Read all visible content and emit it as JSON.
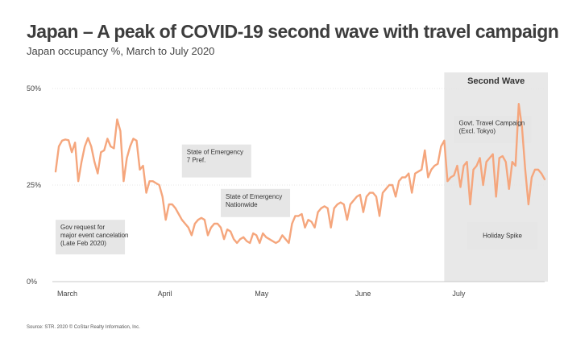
{
  "chart_data": {
    "type": "line",
    "title": "Japan – A peak of COVID-19 second wave with travel campaign",
    "subtitle": "Japan occupancy %, March to July 2020",
    "source": "Source: STR. 2020 © CoStar Realty Information, Inc.",
    "series_name": "Japan occupancy %",
    "line_color": "#f5a67d",
    "shade_color": "#e8e8e8",
    "annotation_color": "#e6e6e6",
    "ylim": [
      0,
      50
    ],
    "yticks": [
      {
        "value": 0,
        "label": "0%"
      },
      {
        "value": 25,
        "label": "25%"
      },
      {
        "value": 50,
        "label": "50%"
      }
    ],
    "xlim": [
      0,
      152
    ],
    "xticks": [
      {
        "day": 1,
        "label": "March"
      },
      {
        "day": 32,
        "label": "April"
      },
      {
        "day": 62,
        "label": "May"
      },
      {
        "day": 93,
        "label": "June"
      },
      {
        "day": 123,
        "label": "July"
      }
    ],
    "shaded_region": {
      "label": "Second Wave",
      "start_day": 121,
      "end_day": 152
    },
    "annotations": [
      {
        "label": "Gov request for\nmajor event cancelation\n(Late Feb 2020)",
        "day": 1,
        "y": 16
      },
      {
        "label": "State of Emergency\n7 Pref.",
        "day": 40,
        "y": 35.5
      },
      {
        "label": "State of Emergency\nNationwide",
        "day": 52,
        "y": 24
      },
      {
        "label": "Govt. Travel Campaign\n(Excl. Tokyo)",
        "day": 124,
        "y": 43
      },
      {
        "label": "Holiday Spike",
        "day": 128,
        "y": 15.5
      }
    ],
    "days": [
      1,
      2,
      3,
      4,
      5,
      6,
      7,
      8,
      9,
      10,
      11,
      12,
      13,
      14,
      15,
      16,
      17,
      18,
      19,
      20,
      21,
      22,
      23,
      24,
      25,
      26,
      27,
      28,
      29,
      30,
      31,
      32,
      33,
      34,
      35,
      36,
      37,
      38,
      39,
      40,
      41,
      42,
      43,
      44,
      45,
      46,
      47,
      48,
      49,
      50,
      51,
      52,
      53,
      54,
      55,
      56,
      57,
      58,
      59,
      60,
      61,
      62,
      63,
      64,
      65,
      66,
      67,
      68,
      69,
      70,
      71,
      72,
      73,
      74,
      75,
      76,
      77,
      78,
      79,
      80,
      81,
      82,
      83,
      84,
      85,
      86,
      87,
      88,
      89,
      90,
      91,
      92,
      93,
      94,
      95,
      96,
      97,
      98,
      99,
      100,
      101,
      102,
      103,
      104,
      105,
      106,
      107,
      108,
      109,
      110,
      111,
      112,
      113,
      114,
      115,
      116,
      117,
      118,
      119,
      120,
      121,
      122,
      123,
      124,
      125,
      126,
      127,
      128,
      129,
      130,
      131,
      132,
      133,
      134,
      135,
      136,
      137,
      138,
      139,
      140,
      141,
      142,
      143,
      144,
      145,
      146,
      147,
      148,
      149,
      150,
      151,
      152
    ],
    "values": [
      28.5,
      35,
      36.5,
      36.8,
      36.6,
      33.5,
      36,
      26,
      31,
      35,
      37.2,
      35,
      31,
      28,
      33.5,
      34,
      37,
      35,
      34.5,
      42,
      39,
      26,
      32,
      35,
      37,
      36.5,
      29,
      30,
      23,
      26,
      26,
      25.5,
      25,
      22,
      16,
      20,
      20,
      19,
      17.5,
      16,
      15,
      14,
      12,
      15,
      16,
      16.5,
      16,
      12,
      14,
      15,
      15,
      14,
      11,
      13.5,
      13,
      11,
      10,
      11,
      11.5,
      10.5,
      10,
      12.5,
      12,
      10,
      12.5,
      11.5,
      11,
      10.5,
      10,
      10.5,
      12,
      11,
      10,
      15,
      17,
      17,
      17.5,
      14,
      16,
      15.5,
      14,
      18,
      19,
      19.5,
      19,
      14,
      19,
      20,
      20.5,
      20,
      16,
      20,
      21,
      22,
      22.5,
      18,
      22,
      23,
      23,
      22,
      17,
      23,
      24,
      25,
      25,
      22,
      26,
      27,
      27,
      28,
      23,
      28,
      28.5,
      29,
      34,
      27,
      29,
      30,
      30.5,
      35,
      36.5,
      26,
      27,
      27.5,
      30,
      24.5,
      30,
      31,
      20,
      29,
      30,
      32,
      25,
      31,
      32,
      33,
      22,
      32,
      32.5,
      31,
      24,
      31,
      30,
      46,
      40,
      29,
      20,
      27,
      29,
      29,
      28,
      26.5
    ]
  }
}
